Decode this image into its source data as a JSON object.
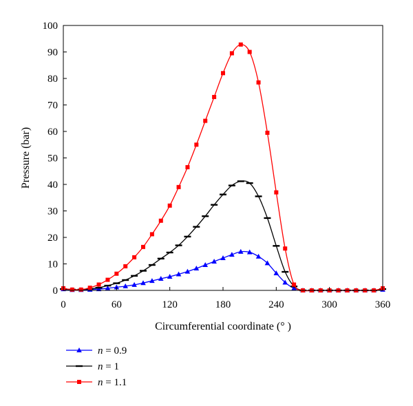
{
  "chart_data": {
    "type": "line",
    "title": "",
    "xlabel": "Circumferential coordinate (° )",
    "ylabel": "Pressure (bar)",
    "xlim": [
      0,
      360
    ],
    "ylim": [
      0,
      100
    ],
    "xticks": [
      0,
      60,
      120,
      180,
      240,
      300,
      360
    ],
    "yticks": [
      0,
      10,
      20,
      30,
      40,
      50,
      60,
      70,
      80,
      90,
      100
    ],
    "grid": false,
    "legend_position": "bottom-left",
    "x": [
      0,
      10,
      20,
      30,
      40,
      50,
      60,
      70,
      80,
      90,
      100,
      110,
      120,
      130,
      140,
      150,
      160,
      170,
      180,
      190,
      200,
      210,
      220,
      230,
      240,
      250,
      260,
      270,
      280,
      290,
      300,
      310,
      320,
      330,
      340,
      350,
      360
    ],
    "series": [
      {
        "name_var": "n",
        "name_rest": " = 0.9",
        "color": "#0000ff",
        "marker": "triangle",
        "values": [
          0.5,
          0.2,
          0.2,
          0.3,
          0.5,
          0.8,
          1.2,
          1.6,
          2.1,
          2.8,
          3.6,
          4.4,
          5.2,
          6.1,
          7.1,
          8.3,
          9.6,
          10.9,
          12.2,
          13.5,
          14.6,
          14.4,
          12.8,
          10.3,
          6.5,
          3.0,
          0.8,
          0,
          0,
          0,
          0,
          0,
          0,
          0,
          0,
          0,
          0.3
        ]
      },
      {
        "name_var": "n",
        "name_rest": " = 1",
        "color": "#000000",
        "marker": "dash",
        "values": [
          0.5,
          0.3,
          0.3,
          0.6,
          1.0,
          1.8,
          2.7,
          3.9,
          5.5,
          7.4,
          9.6,
          12.0,
          14.3,
          17.0,
          20.3,
          24.0,
          28.0,
          32.3,
          36.2,
          39.6,
          41.2,
          40.5,
          35.5,
          27.3,
          16.8,
          7.0,
          1.5,
          0,
          0,
          0,
          0,
          0,
          0,
          0,
          0,
          0,
          0.5
        ]
      },
      {
        "name_var": "n",
        "name_rest": " = 1.1",
        "color": "#ff0000",
        "marker": "square",
        "values": [
          0.8,
          0.3,
          0.3,
          1.0,
          2.2,
          4.0,
          6.3,
          9.1,
          12.5,
          16.4,
          21.2,
          26.3,
          32.0,
          39.0,
          46.5,
          55.0,
          64.0,
          73.0,
          82.0,
          89.5,
          92.8,
          90.0,
          78.5,
          59.5,
          37.0,
          15.8,
          2.2,
          0,
          0,
          0,
          0,
          0,
          0,
          0,
          0,
          0,
          0.8
        ]
      }
    ]
  }
}
